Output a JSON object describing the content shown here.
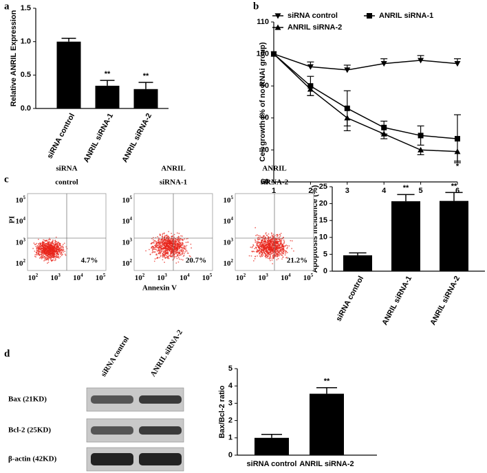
{
  "panel_letters": [
    "a",
    "b",
    "c",
    "d"
  ],
  "chart_data": [
    {
      "type": "bar",
      "ylabel": "Relative ANRIL Expression",
      "categories": [
        "siRNA control",
        "ANRIL siRNA-1",
        "ANRIL siRNA-2"
      ],
      "values": [
        1.0,
        0.34,
        0.29
      ],
      "errors": [
        0.05,
        0.08,
        0.1
      ],
      "annotations": [
        null,
        "**",
        "**"
      ],
      "color": "#000000",
      "ylim": [
        0,
        1.5
      ],
      "yticks": [
        {
          "value": 0,
          "label": "0.0"
        },
        {
          "value": 0.5,
          "label": "0.5"
        },
        {
          "value": 1,
          "label": "1.0"
        },
        {
          "value": 1.5,
          "label": "1.5"
        }
      ]
    },
    {
      "type": "line",
      "ylabel": "Cell growth (% of no RNAi group)",
      "x": [
        1,
        2,
        3,
        4,
        5,
        6
      ],
      "xlim": [
        1,
        6
      ],
      "xticks": [
        1,
        2,
        3,
        4,
        5,
        6
      ],
      "ylim": [
        60,
        110
      ],
      "yticks": [
        60,
        70,
        80,
        90,
        100,
        110
      ],
      "legend": "top",
      "annotation": "*",
      "series": [
        {
          "name": "siRNA control",
          "color": "#000000",
          "marker": "triangle-down",
          "values": [
            100,
            96,
            95,
            97,
            98,
            97
          ],
          "errors": [
            0,
            1.5,
            1.5,
            1.5,
            1.5,
            1.5
          ]
        },
        {
          "name": "ANRIL siRNA-1",
          "color": "#000000",
          "marker": "square",
          "values": [
            100,
            90,
            83,
            77,
            74.5,
            73.5
          ],
          "errors": [
            0,
            3,
            5.5,
            2,
            3,
            7.5
          ]
        },
        {
          "name": "ANRIL siRNA-2",
          "color": "#000000",
          "marker": "triangle-up",
          "values": [
            100,
            89,
            80,
            75,
            70,
            69.5
          ],
          "errors": [
            0,
            2,
            4,
            1.5,
            1.5,
            3
          ]
        }
      ]
    },
    {
      "type": "bar",
      "ylabel": "Apoptosis incidence (%)",
      "categories": [
        "siRNA control",
        "ANRIL siRNA-1",
        "ANRIL siRNA-2"
      ],
      "values": [
        4.7,
        20.7,
        20.8
      ],
      "errors": [
        0.7,
        2,
        2.5
      ],
      "annotations": [
        null,
        "**",
        "**"
      ],
      "color": "#000000",
      "ylim": [
        0,
        25
      ],
      "yticks": [
        0,
        5,
        10,
        15,
        20,
        25
      ]
    },
    {
      "type": "bar",
      "ylabel": "Bax/Bcl-2 ratio",
      "categories": [
        "siRNA control",
        "ANRIL siRNA-2"
      ],
      "values": [
        1.0,
        3.55
      ],
      "errors": [
        0.2,
        0.35
      ],
      "annotations": [
        null,
        "**"
      ],
      "color": "#000000",
      "ylim": [
        0,
        5
      ],
      "yticks": [
        0,
        1,
        2,
        3,
        4,
        5
      ]
    }
  ],
  "flow": {
    "ylabel": "PI",
    "xlabel": "Annexin V",
    "tick_base": "10",
    "tick_exponents": [
      "2",
      "3",
      "4",
      "5"
    ],
    "plots": [
      {
        "title": [
          "siRNA",
          "control"
        ],
        "percent": "4.7%"
      },
      {
        "title": [
          "ANRIL",
          "siRNA-1"
        ],
        "percent": "20.7%"
      },
      {
        "title": [
          "ANRIL",
          "siRNA-2"
        ],
        "percent": "21.2%"
      }
    ]
  },
  "blot": {
    "lanes": [
      "siRNA control",
      "ANRIL siRNA-2"
    ],
    "bands": [
      "Bax (21KD)",
      "Bcl-2 (25KD)",
      "β-actin (42KD)"
    ]
  }
}
